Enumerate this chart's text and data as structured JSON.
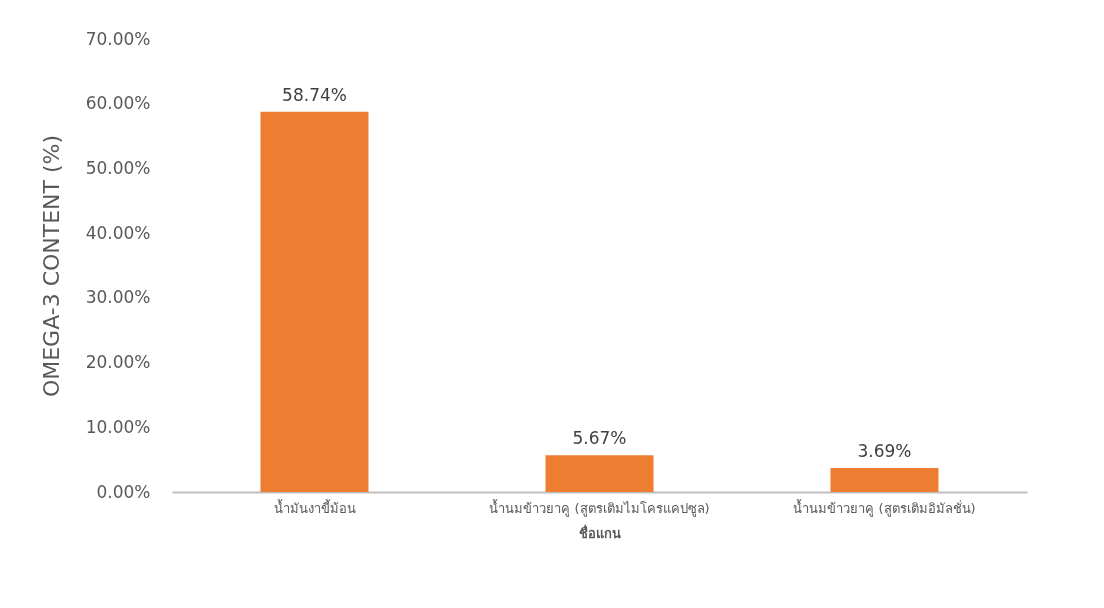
{
  "chart_data": {
    "type": "bar",
    "ylabel": "OMEGA-3 CONTENT (%)",
    "xlabel": "ชื่อแกน",
    "categories": [
      "น้ำมันงาขี้ม้อน",
      "น้ำนมข้าวยาคู (สูตรเติมไมโครแคปซูล)",
      "น้ำนมข้าวยาคู (สูตรเติมอิมัลชั่น)"
    ],
    "values": [
      58.74,
      5.67,
      3.69
    ],
    "color": "#ed7d31",
    "value_labels": [
      "58.74%",
      "5.67%",
      "3.69%"
    ],
    "ylim": [
      0,
      70
    ],
    "yticks": [
      {
        "value": 0,
        "label": "0.00%"
      },
      {
        "value": 10,
        "label": "10.00%"
      },
      {
        "value": 20,
        "label": "20.00%"
      },
      {
        "value": 30,
        "label": "30.00%"
      },
      {
        "value": 40,
        "label": "40.00%"
      },
      {
        "value": 50,
        "label": "50.00%"
      },
      {
        "value": 60,
        "label": "60.00%"
      },
      {
        "value": 70,
        "label": "70.00%"
      }
    ],
    "grid": false
  }
}
